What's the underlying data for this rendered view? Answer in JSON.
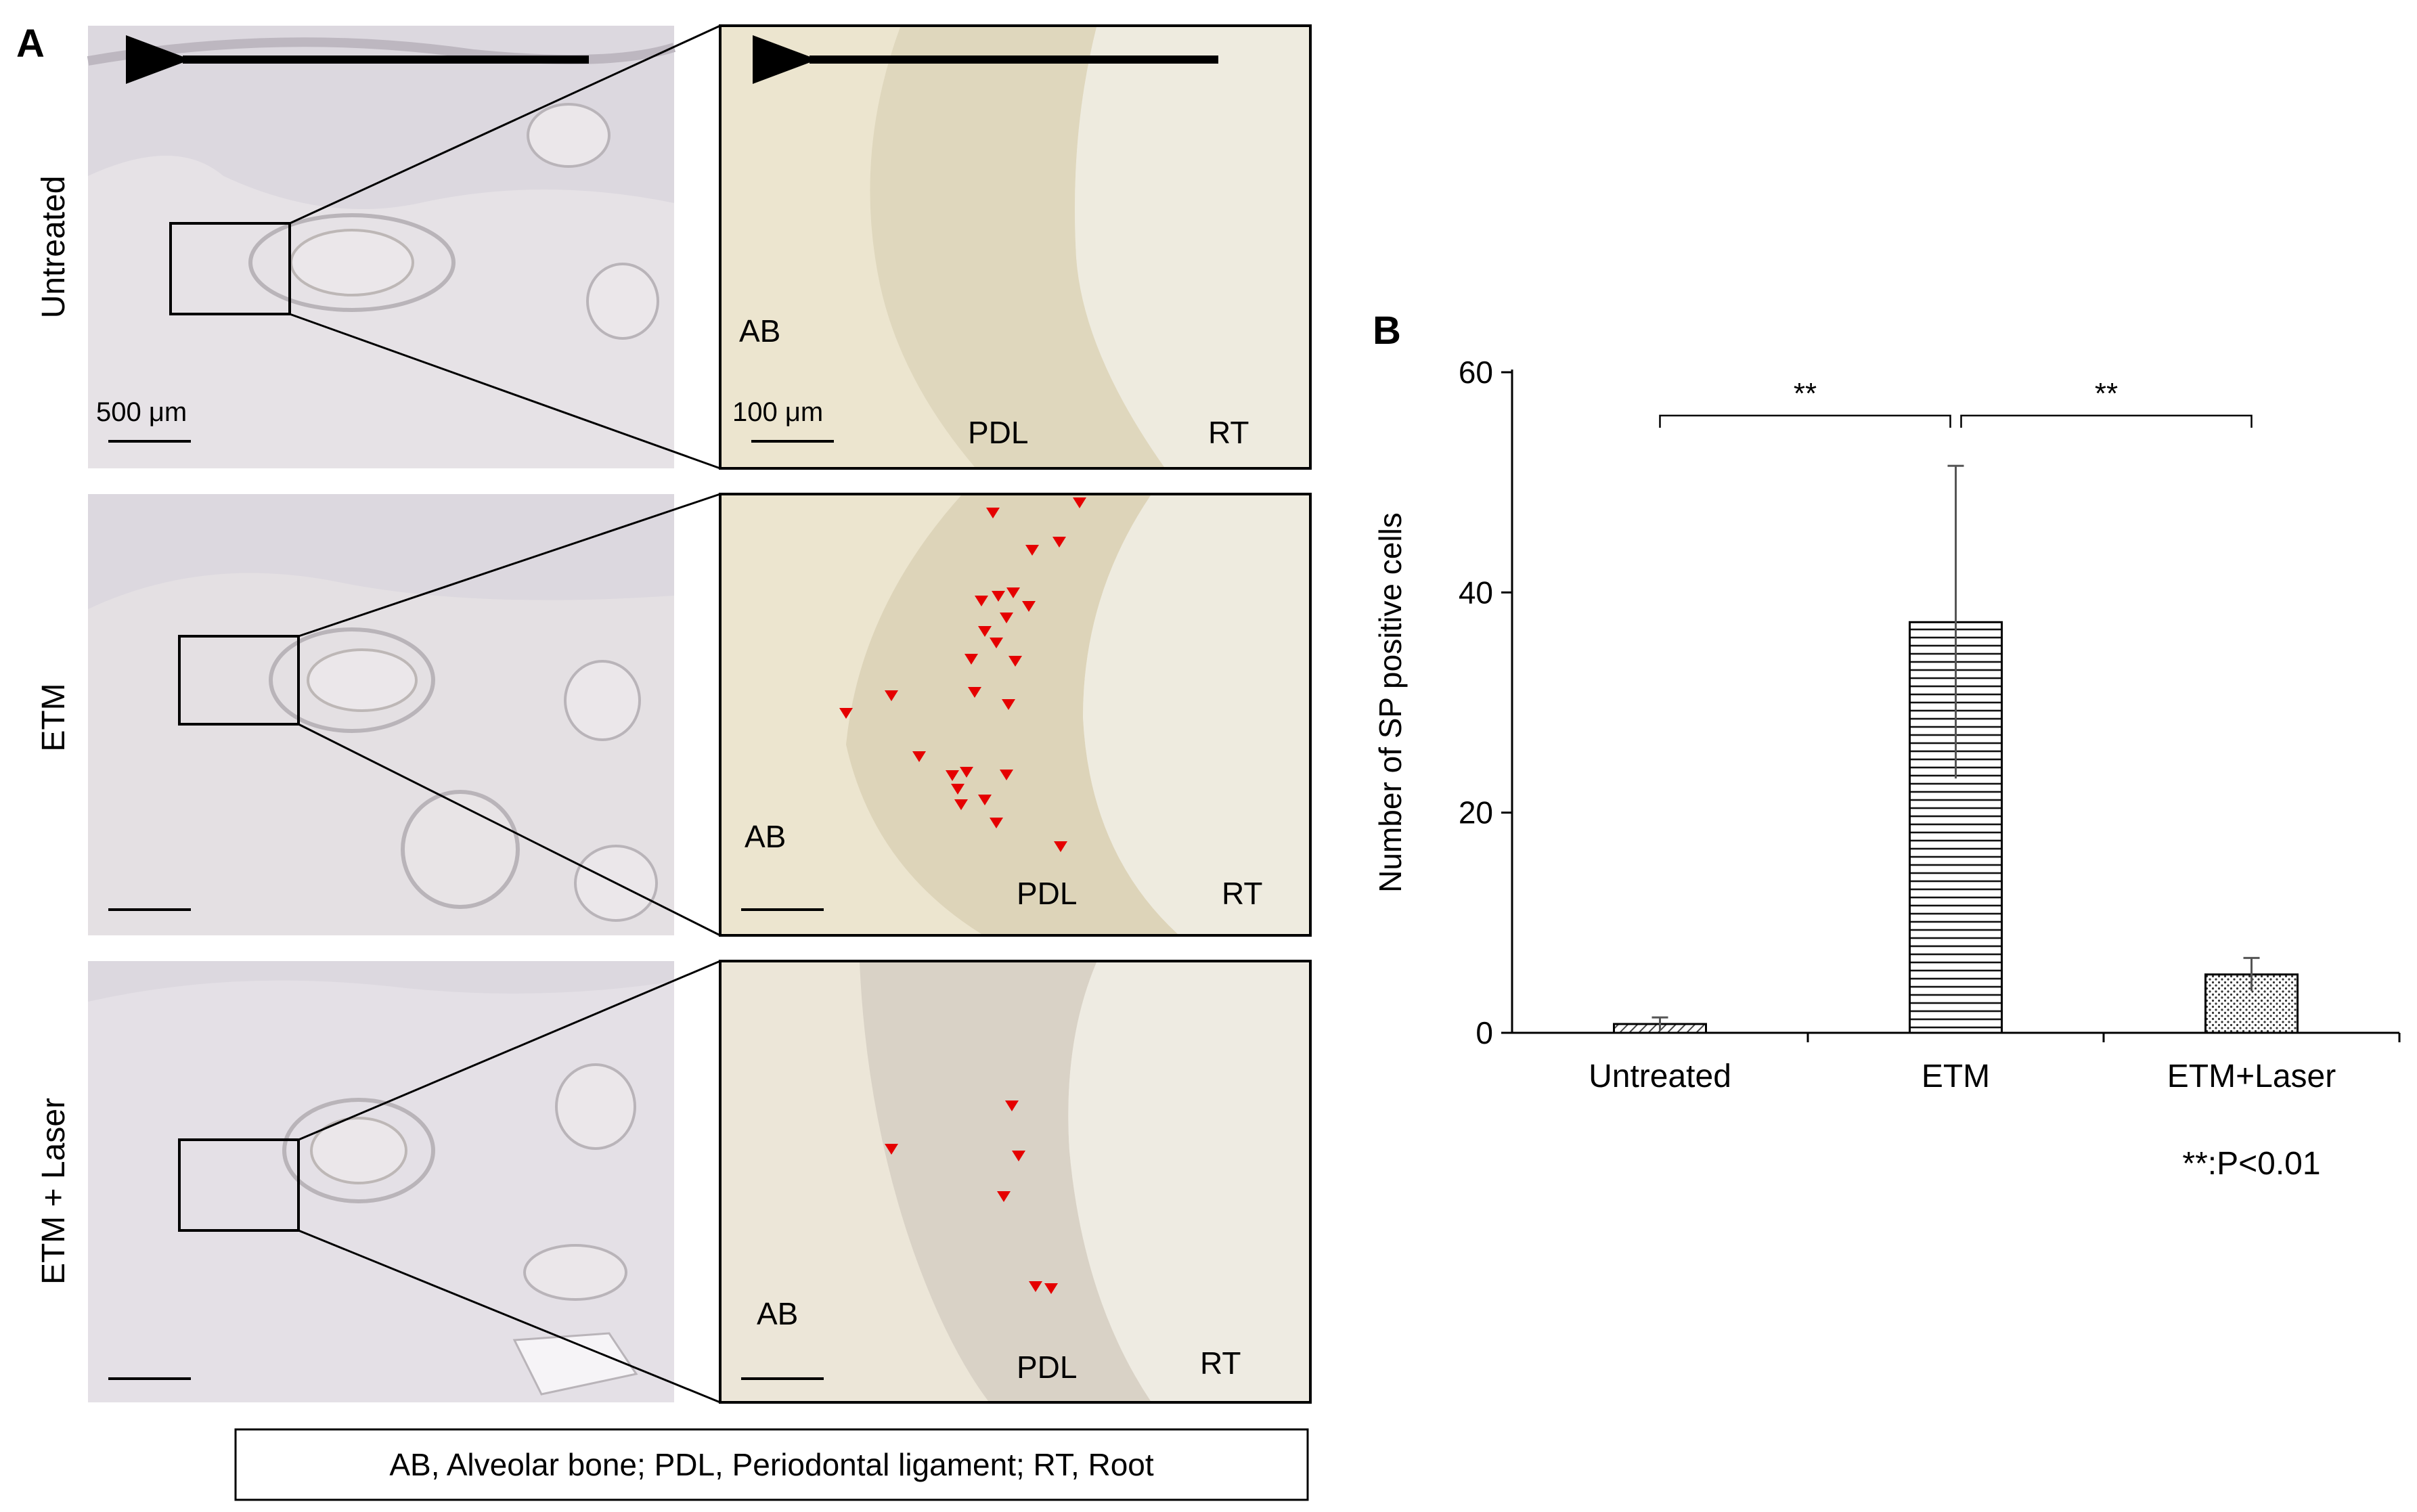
{
  "figure": {
    "panel_a_letter": "A",
    "panel_b_letter": "B",
    "rows": [
      {
        "label": "Untreated",
        "tags": [
          "AB",
          "PDL",
          "RT"
        ],
        "scale_low": "500 μm",
        "scale_high": "100 μm",
        "arrow": true,
        "marker_count": 0
      },
      {
        "label": "ETM",
        "tags": [
          "AB",
          "PDL",
          "RT"
        ],
        "scale_low": "",
        "scale_high": "",
        "arrow": false,
        "marker_count": 26
      },
      {
        "label": "ETM + Laser",
        "tags": [
          "AB",
          "PDL",
          "RT"
        ],
        "scale_low": "",
        "scale_high": "",
        "arrow": false,
        "marker_count": 6
      }
    ],
    "legend_box": "AB, Alveolar bone; PDL, Periodontal ligament; RT, Root",
    "colors": {
      "tissue_background": "#ece5cf",
      "low_mag_background": "#dcd8df",
      "marker": "#e50000",
      "frame": "#000000"
    }
  },
  "chart_data": {
    "type": "bar",
    "categories": [
      "Untreated",
      "ETM",
      "ETM+Laser"
    ],
    "values": [
      0.8,
      37.3,
      5.3
    ],
    "error": [
      0.6,
      14.2,
      1.5
    ],
    "ylabel": "Number of SP positive cells",
    "xlabel": "",
    "ylim": [
      0,
      60
    ],
    "yticks": [
      0,
      20,
      40,
      60
    ],
    "bar_patterns": [
      "diagonal-hatch",
      "horizontal-lines",
      "dotted"
    ],
    "significance": [
      {
        "from": "Untreated",
        "to": "ETM",
        "label": "**"
      },
      {
        "from": "ETM",
        "to": "ETM+Laser",
        "label": "**"
      }
    ],
    "note": "**:P<0.01",
    "grid": false
  }
}
